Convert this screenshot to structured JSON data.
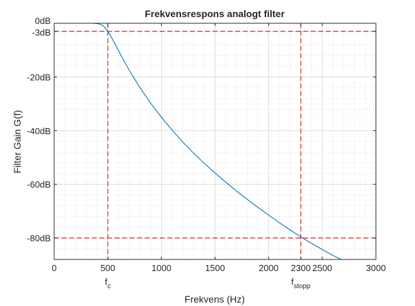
{
  "chart_data": {
    "type": "line",
    "title": "Frekvensrespons analogt filter",
    "xlabel": "Frekvens (Hz)",
    "ylabel": "Filter Gain G(f)",
    "xlim": [
      0,
      3000
    ],
    "ylim": [
      -88,
      0
    ],
    "x_ticks": [
      0,
      500,
      1000,
      1500,
      2000,
      2300,
      2500,
      3000
    ],
    "x_tick_labels": [
      "0",
      "500",
      "1000",
      "1500",
      "2000",
      "2300",
      "2500",
      "3000"
    ],
    "y_ticks": [
      0,
      -3,
      -20,
      -40,
      -60,
      -80
    ],
    "y_tick_labels": [
      "0dB",
      "-3dB",
      "-20dB",
      "-40dB",
      "-60dB",
      "-80dB"
    ],
    "grid": "on (major and minor)",
    "series": [
      {
        "x": [
          0,
          100,
          200,
          300,
          350,
          400,
          425,
          450,
          475,
          500,
          525,
          550,
          600,
          650,
          700,
          800,
          900,
          1000,
          1100,
          1200,
          1300,
          1400,
          1500,
          1600,
          1700,
          1800,
          1900,
          2000,
          2100,
          2200,
          2300,
          2400,
          2500,
          2600,
          2700,
          2800
        ],
        "y": [
          0,
          0,
          0,
          0,
          0,
          -0.1,
          -0.3,
          -0.8,
          -1.7,
          -3,
          -4.6,
          -6.4,
          -10.2,
          -14,
          -17.5,
          -24,
          -29.8,
          -35,
          -39.8,
          -44.3,
          -48.4,
          -52.2,
          -55.8,
          -59.2,
          -62.5,
          -65.6,
          -68.6,
          -71.5,
          -74.3,
          -77,
          -79.6,
          -82,
          -84.3,
          -86.5,
          -88.5,
          -90.3
        ],
        "color": "#0072BD"
      }
    ],
    "reference_lines": [
      {
        "axis": "x",
        "value": 500,
        "color": "#D62728",
        "style": "dashed",
        "label_base": "f",
        "label_sub": "c"
      },
      {
        "axis": "x",
        "value": 2300,
        "color": "#D62728",
        "style": "dashed",
        "label_base": "f",
        "label_sub": "stopp"
      },
      {
        "axis": "y",
        "value": -3,
        "color": "#D62728",
        "style": "dashed"
      },
      {
        "axis": "y",
        "value": -80,
        "color": "#D62728",
        "style": "dashed"
      }
    ]
  }
}
